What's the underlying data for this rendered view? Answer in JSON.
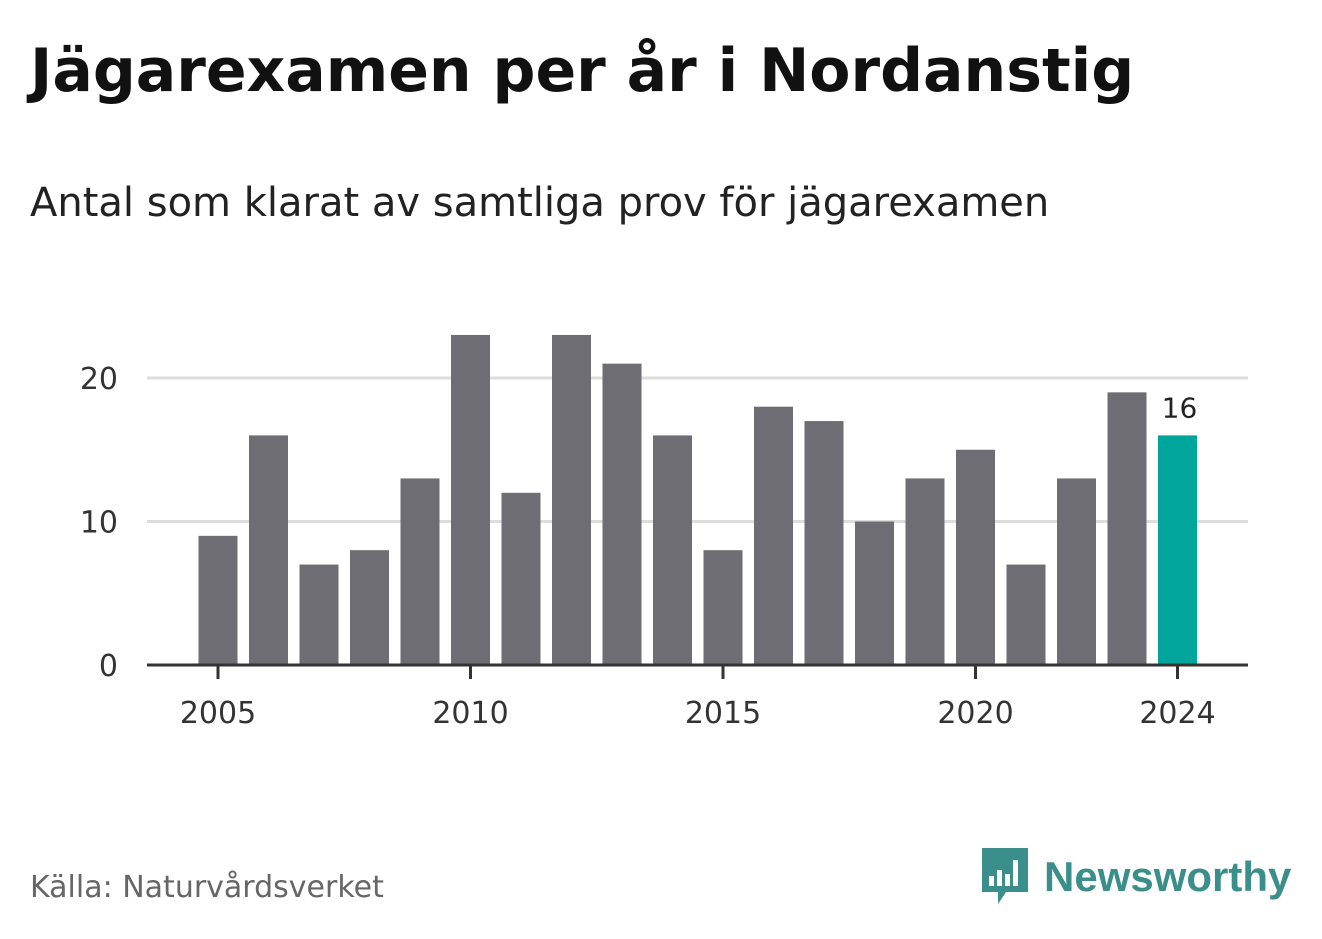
{
  "header": {
    "title": "Jägarexamen per år i Nordanstig",
    "subtitle": "Antal som klarat av samtliga prov för jägarexamen"
  },
  "footer": {
    "source": "Källa: Naturvårdsverket",
    "brand": "Newsworthy",
    "brand_icon": "bar-chart-speech-bubble-icon"
  },
  "colors": {
    "bar": "#6e6d73",
    "highlight": "#00a59b",
    "grid": "#dddddd",
    "axis": "#333333",
    "brand": "#3a8f8a"
  },
  "chart_data": {
    "type": "bar",
    "categories": [
      2005,
      2006,
      2007,
      2008,
      2009,
      2010,
      2011,
      2012,
      2013,
      2014,
      2015,
      2016,
      2017,
      2018,
      2019,
      2020,
      2021,
      2022,
      2023,
      2024
    ],
    "values": [
      9,
      16,
      7,
      8,
      13,
      23,
      12,
      23,
      21,
      16,
      8,
      18,
      17,
      10,
      13,
      15,
      7,
      13,
      19,
      16
    ],
    "highlight_category": 2024,
    "highlight_label": "16",
    "x_tick_labels": [
      "2005",
      "2010",
      "2015",
      "2020",
      "2024"
    ],
    "y_ticks": [
      0,
      10,
      20
    ],
    "ylim": [
      0,
      23
    ],
    "grid": true
  }
}
